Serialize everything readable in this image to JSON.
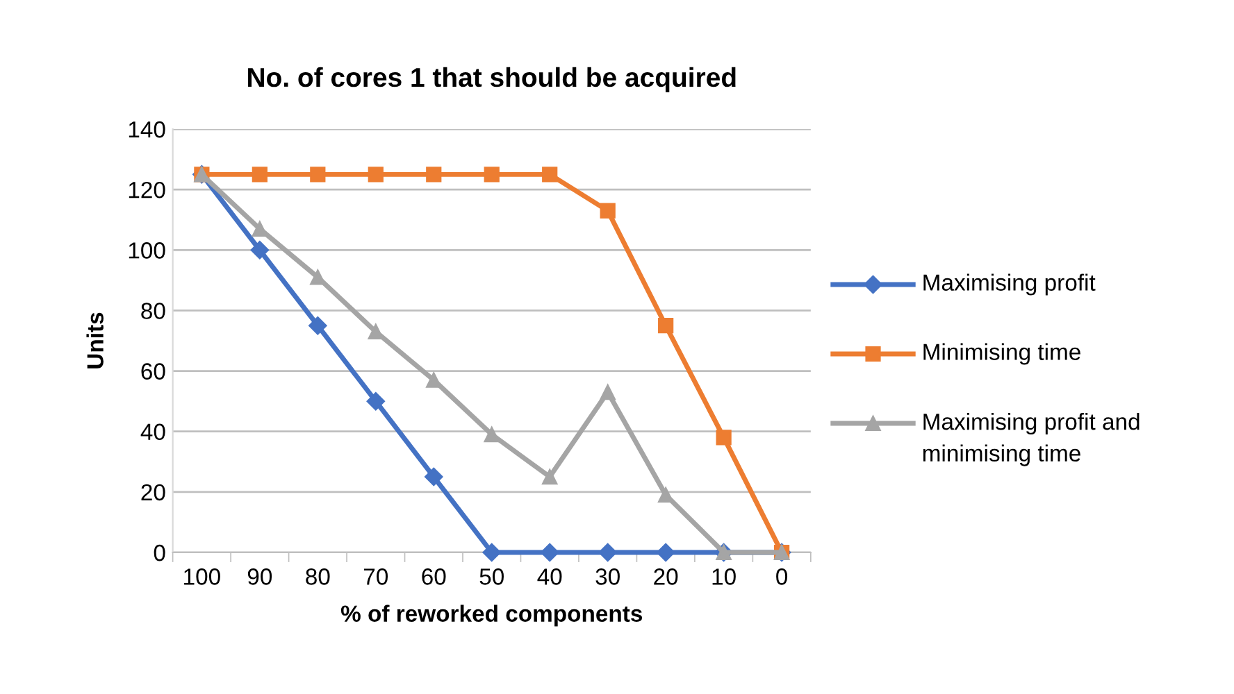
{
  "chart_data": {
    "type": "line",
    "title": "No. of cores 1 that should be acquired",
    "xlabel": "% of reworked components",
    "ylabel": "Units",
    "categories": [
      "100",
      "90",
      "80",
      "70",
      "60",
      "50",
      "40",
      "30",
      "20",
      "10",
      "0"
    ],
    "series": [
      {
        "name": "Maximising profit",
        "color": "#4472c4",
        "marker": "diamond",
        "values": [
          125,
          100,
          75,
          50,
          25,
          0,
          0,
          0,
          0,
          0,
          0
        ]
      },
      {
        "name": "Minimising time",
        "color": "#ed7d31",
        "marker": "square",
        "values": [
          125,
          125,
          125,
          125,
          125,
          125,
          125,
          113,
          75,
          38,
          0
        ]
      },
      {
        "name": "Maximising profit and minimising time",
        "color": "#a5a5a5",
        "marker": "triangle",
        "values": [
          125,
          107,
          91,
          73,
          57,
          39,
          25,
          53,
          19,
          0,
          0
        ]
      }
    ],
    "ylim": [
      0,
      140
    ],
    "yticks": [
      0,
      20,
      40,
      60,
      80,
      100,
      120,
      140
    ],
    "grid": "y",
    "legend": "right",
    "line_style": "solid"
  }
}
